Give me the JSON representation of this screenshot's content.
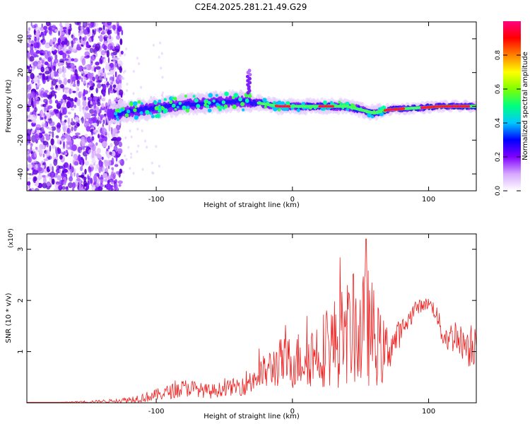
{
  "title": "C2E4.2025.281.21.49.G29",
  "chart_data": [
    {
      "type": "heatmap",
      "xlabel": "Height of straight line (km)",
      "ylabel": "Frequency (Hz)",
      "xlim": [
        -195,
        135
      ],
      "ylim": [
        -50,
        50
      ],
      "xticks": [
        -100,
        0,
        100
      ],
      "yticks": [
        -40,
        -20,
        0,
        20,
        40
      ],
      "colorbar": {
        "label": "Normalized spectral amplitude",
        "range": [
          0,
          1
        ],
        "ticks": [
          "0.0",
          "0.2",
          "0.4",
          "0.6",
          "0.8"
        ],
        "tick_values": [
          0,
          0.2,
          0.4,
          0.6,
          0.8
        ],
        "colors": [
          "#ffffff",
          "#d6a8ff",
          "#8000ff",
          "#0000ff",
          "#00c8ff",
          "#00ff80",
          "#80ff00",
          "#ffff00",
          "#ff8000",
          "#ff0000",
          "#ff0080"
        ]
      },
      "ridge": {
        "x": [
          -130,
          -120,
          -100,
          -80,
          -60,
          -40,
          -25,
          -10,
          0,
          20,
          40,
          50,
          60,
          70,
          90,
          110,
          135
        ],
        "freq": [
          -5,
          -3,
          -1,
          1,
          2,
          3,
          2,
          0,
          0,
          0,
          0,
          -2,
          -4,
          -2,
          -1,
          0,
          0
        ]
      },
      "noise_region": {
        "x": [
          -195,
          -125
        ],
        "freq": [
          -50,
          50
        ]
      },
      "spike": {
        "x": -32,
        "freq": [
          8,
          22
        ]
      }
    },
    {
      "type": "line",
      "xlabel": "Height of straight line (km)",
      "ylabel": "SNR (10 * v/v)",
      "y_multiplier": "(x10⁴)",
      "xlim": [
        -195,
        135
      ],
      "ylim": [
        0,
        3.3
      ],
      "xticks": [
        -100,
        0,
        100
      ],
      "yticks": [
        1,
        2,
        3
      ],
      "color": "#ee2020",
      "series": [
        {
          "name": "SNR",
          "x": [
            -195,
            -170,
            -150,
            -130,
            -120,
            -110,
            -100,
            -90,
            -80,
            -75,
            -70,
            -60,
            -50,
            -40,
            -30,
            -20,
            -10,
            0,
            10,
            20,
            25,
            30,
            35,
            40,
            45,
            50,
            55,
            60,
            65,
            70,
            75,
            80,
            85,
            90,
            95,
            100,
            105,
            110,
            115,
            120,
            125,
            130,
            135
          ],
          "mean": [
            0.01,
            0.01,
            0.02,
            0.04,
            0.06,
            0.1,
            0.15,
            0.22,
            0.28,
            0.3,
            0.26,
            0.22,
            0.28,
            0.32,
            0.45,
            0.6,
            0.78,
            0.8,
            0.9,
            1.0,
            1.1,
            1.15,
            1.25,
            1.35,
            1.45,
            1.3,
            1.5,
            1.3,
            1.0,
            1.05,
            1.2,
            1.4,
            1.6,
            1.85,
            1.9,
            1.95,
            1.8,
            1.35,
            1.25,
            1.35,
            1.15,
            1.15,
            1.2
          ],
          "amp": [
            0.0,
            0.0,
            0.02,
            0.03,
            0.06,
            0.08,
            0.1,
            0.12,
            0.15,
            0.15,
            0.12,
            0.12,
            0.12,
            0.15,
            0.25,
            0.3,
            0.4,
            0.45,
            0.5,
            0.6,
            0.65,
            0.75,
            0.8,
            0.85,
            0.9,
            0.95,
            1.0,
            0.8,
            0.6,
            0.4,
            0.3,
            0.2,
            0.15,
            0.15,
            0.1,
            0.1,
            0.15,
            0.2,
            0.25,
            0.3,
            0.25,
            0.4,
            0.4
          ]
        }
      ],
      "peak": {
        "x": 54,
        "y": 3.2
      }
    }
  ]
}
